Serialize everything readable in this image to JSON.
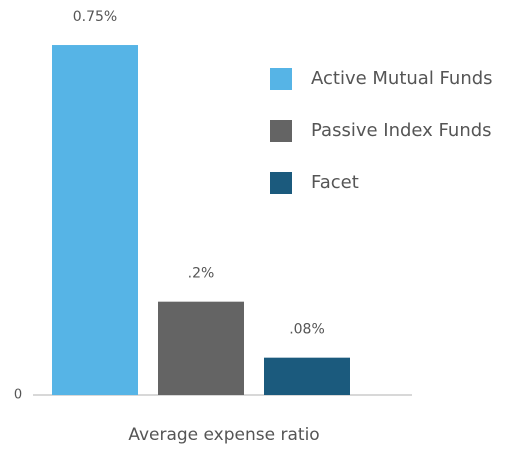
{
  "chart_data": {
    "type": "bar",
    "categories": [
      "Average expense ratio"
    ],
    "series": [
      {
        "name": "Active Mutual Funds",
        "color": "#56b4e6",
        "values": [
          0.75
        ],
        "value_labels": [
          "0.75%"
        ]
      },
      {
        "name": "Passive Index Funds",
        "color": "#646464",
        "values": [
          0.2
        ],
        "value_labels": [
          ".2%"
        ]
      },
      {
        "name": "Facet",
        "color": "#1b5a7d",
        "values": [
          0.08
        ],
        "value_labels": [
          ".08%"
        ]
      }
    ],
    "ylim": [
      0,
      0.8
    ],
    "yticks": [
      0
    ],
    "grid": false,
    "legend": "upper right"
  }
}
